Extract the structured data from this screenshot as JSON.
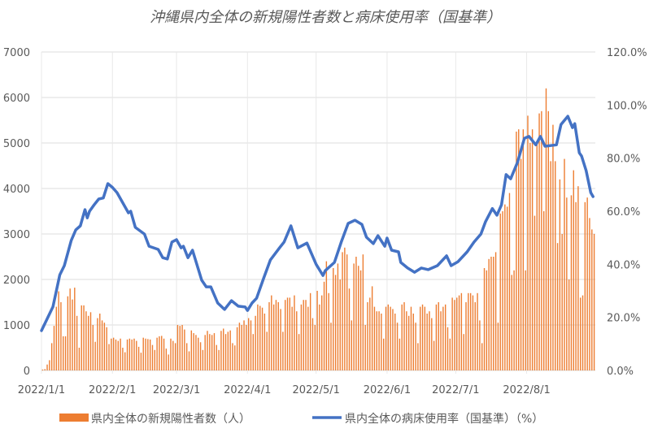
{
  "chart_data": {
    "type": "bar+line",
    "title": "沖縄県内全体の新規陽性者数と病床使用率（国基準）",
    "start_date": "2022-01-01",
    "x_day_range": [
      0,
      242
    ],
    "x_ticks": [
      {
        "day": 0,
        "label": "2022/1/1"
      },
      {
        "day": 31,
        "label": "2022/2/1"
      },
      {
        "day": 59,
        "label": "2022/3/1"
      },
      {
        "day": 90,
        "label": "2022/4/1"
      },
      {
        "day": 120,
        "label": "2022/5/1"
      },
      {
        "day": 151,
        "label": "2022/6/1"
      },
      {
        "day": 181,
        "label": "2022/7/1"
      },
      {
        "day": 212,
        "label": "2022/8/1"
      }
    ],
    "y_left": {
      "min": 0,
      "max": 7000,
      "ticks": [
        "0",
        "1000",
        "2000",
        "3000",
        "4000",
        "5000",
        "6000",
        "7000"
      ]
    },
    "y_right": {
      "min": 0,
      "max": 120,
      "ticks": [
        "0.0%",
        "20.0%",
        "40.0%",
        "60.0%",
        "80.0%",
        "100.0%",
        "120.0%"
      ]
    },
    "grid": true,
    "legend_position": "bottom",
    "series": [
      {
        "name": "県内全体の新規陽性者数（人）",
        "type": "bar",
        "axis": "left",
        "color": "#ED7D31",
        "values": [
          20,
          30,
          130,
          225,
          600,
          980,
          1400,
          1740,
          1500,
          750,
          750,
          1630,
          1800,
          1560,
          1820,
          1200,
          500,
          1430,
          1430,
          1300,
          1200,
          1280,
          1000,
          630,
          1150,
          1250,
          1100,
          1050,
          950,
          580,
          700,
          720,
          680,
          650,
          700,
          500,
          400,
          680,
          700,
          680,
          700,
          650,
          520,
          390,
          720,
          700,
          690,
          680,
          560,
          450,
          720,
          750,
          760,
          700,
          480,
          350,
          700,
          650,
          600,
          1000,
          980,
          1000,
          900,
          600,
          420,
          880,
          820,
          780,
          720,
          620,
          450,
          780,
          870,
          800,
          780,
          820,
          560,
          450,
          870,
          920,
          800,
          850,
          880,
          600,
          550,
          950,
          1050,
          1000,
          1100,
          1000,
          1150,
          1100,
          800,
          1200,
          1450,
          1420,
          1380,
          1250,
          850,
          1500,
          1650,
          1450,
          1550,
          1500,
          1350,
          850,
          1550,
          1600,
          1600,
          1400,
          1650,
          1300,
          800,
          1450,
          1550,
          1550,
          1400,
          1700,
          1150,
          1000,
          1750,
          1450,
          1650,
          1950,
          2400,
          1700,
          1050,
          2250,
          2100,
          2350,
          2000,
          2600,
          2700,
          2550,
          1800,
          1100,
          2350,
          2500,
          2300,
          2200,
          2550,
          1000,
          1500,
          1600,
          1850,
          1400,
          1300,
          1300,
          1250,
          700,
          1400,
          1450,
          1400,
          1350,
          1250,
          1050,
          700,
          1450,
          1500,
          1300,
          1200,
          1400,
          1250,
          1050,
          600,
          1400,
          1450,
          1400,
          1250,
          1300,
          1150,
          650,
          1450,
          1500,
          1300,
          1400,
          1450,
          950,
          700,
          1600,
          1550,
          1600,
          1650,
          1700,
          800,
          1500,
          1700,
          1700,
          1650,
          1500,
          1700,
          1100,
          600,
          2250,
          2200,
          2450,
          2500,
          2500,
          2600,
          1050,
          3450,
          3500,
          3650,
          3600,
          3900,
          2100,
          2200,
          5250,
          5300,
          4650,
          5300,
          2200,
          5600,
          5000,
          5300,
          3400,
          5000,
          5650,
          5700,
          3500,
          6200,
          5700,
          4600,
          5400,
          4600,
          2800,
          4200,
          3000,
          4650,
          3800,
          2000,
          3850,
          4400,
          3700,
          4050,
          1600,
          1650,
          3700,
          3800,
          3350,
          3100,
          3000
        ]
      },
      {
        "name": "県内全体の病床使用率（国基準）（%）",
        "type": "line",
        "axis": "right",
        "color": "#4472C4",
        "x_day": [
          0,
          5,
          8,
          10,
          13,
          15,
          17,
          19,
          20,
          21,
          23,
          25,
          27,
          29,
          31,
          33,
          38,
          39,
          41,
          45,
          47,
          51,
          53,
          55,
          57,
          59,
          61,
          62,
          64,
          66,
          70,
          72,
          74,
          77,
          80,
          83,
          86,
          89,
          90,
          92,
          94,
          97,
          100,
          104,
          106,
          109,
          112,
          116,
          120,
          123,
          124,
          128,
          131,
          134,
          137,
          140,
          142,
          145,
          147,
          150,
          151,
          153,
          156,
          157,
          160,
          163,
          166,
          169,
          173,
          177,
          179,
          182,
          186,
          189,
          192,
          194,
          197,
          199,
          201,
          203,
          205,
          208,
          211,
          213,
          216,
          218,
          220,
          225,
          227,
          230,
          232,
          233,
          235,
          236,
          238,
          240,
          241
        ],
        "values": [
          15,
          24,
          36,
          39.5,
          49,
          53,
          54.5,
          60.6,
          57.5,
          60,
          62.4,
          64.6,
          65,
          70.4,
          69,
          67,
          59.4,
          60,
          53.9,
          51.4,
          46.8,
          45.6,
          42.5,
          42,
          48.4,
          49.3,
          46.2,
          46.8,
          42.5,
          45.3,
          34,
          31.5,
          31.5,
          25.4,
          23,
          26.3,
          24.2,
          23.9,
          22.6,
          25.4,
          27.2,
          34.6,
          41.6,
          46.2,
          48.4,
          54.5,
          46.2,
          48,
          40,
          35.8,
          37.6,
          40.7,
          48.4,
          55.4,
          56.6,
          55,
          50.2,
          47.8,
          50.8,
          46.8,
          49.9,
          45.3,
          44.7,
          40.7,
          38.6,
          37,
          38.6,
          38,
          39.5,
          43.2,
          39.5,
          41,
          44.7,
          48.4,
          51.4,
          56,
          61,
          58.5,
          62.4,
          73.8,
          72.2,
          78.4,
          87.5,
          88.2,
          85,
          88.2,
          84.5,
          85,
          92.7,
          95.8,
          91.5,
          93,
          82,
          80.8,
          75.3,
          67,
          65.5
        ]
      }
    ]
  }
}
